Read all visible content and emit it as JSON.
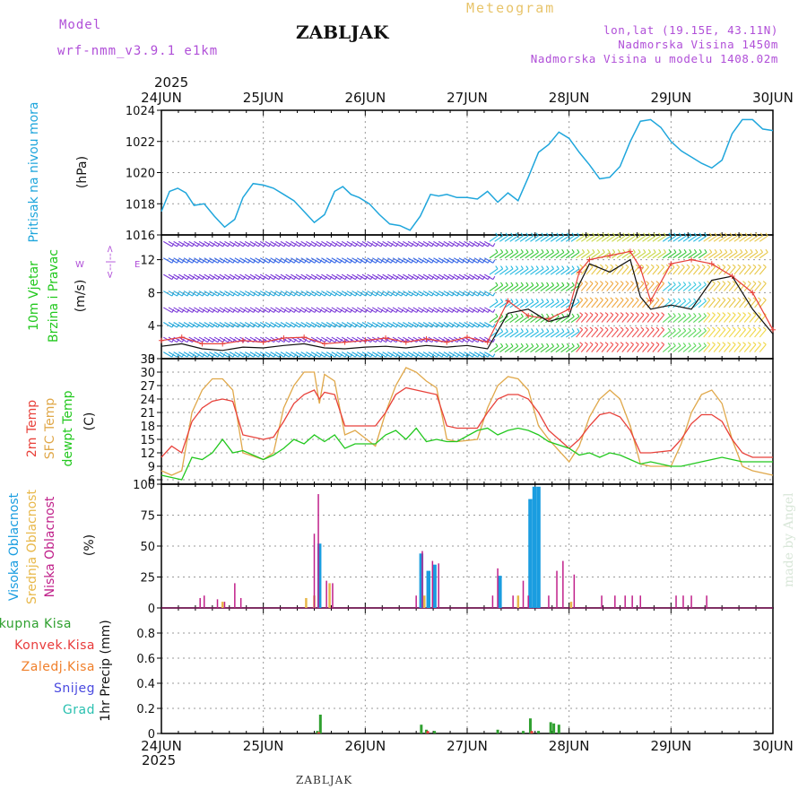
{
  "header": {
    "model_label": "Model",
    "model_name": "wrf-nmm_v3.9.1 e1km",
    "station_title": "ZABLJAK",
    "meteogram_label": "Meteogram",
    "lonlat": "lon,lat (19.15E, 43.11N)",
    "altitude": "Nadmorska Visina 1450m",
    "model_altitude": "Nadmorska Visina u modelu 1408.02m",
    "top_year": "2025",
    "bottom_year": "2025",
    "footer_station": "ZABLJAK",
    "made_by": "made by Angel"
  },
  "dates": [
    "24JUN",
    "25JUN",
    "26JUN",
    "27JUN",
    "28JUN",
    "29JUN",
    "30JUN"
  ],
  "colors": {
    "pressure": "#1fa6dc",
    "temp2m": "#e8413a",
    "sfc": "#e0a84a",
    "dew": "#22c81e",
    "high_cloud": "#1a9de0",
    "mid_cloud": "#e8b84a",
    "low_cloud": "#c0208a",
    "total_precip": "#2fa02f",
    "conv_precip": "#e83a3a",
    "frozen": "#f07f2a",
    "snow": "#4a4ae0",
    "graupel": "#2ac0b0",
    "wind_label": "#22c81e",
    "wind_axis": "#b04fd8"
  },
  "chart_data": [
    {
      "type": "line",
      "panel": "pressure",
      "ylabel": "Pritisak na nivou mora",
      "units": "(hPa)",
      "ylim": [
        1016,
        1024
      ],
      "yticks": [
        1016,
        1018,
        1020,
        1022,
        1024
      ],
      "grid": true,
      "series": [
        {
          "x": [
            0,
            0.08,
            0.16,
            0.24,
            0.32,
            0.42,
            0.52,
            0.62,
            0.72,
            0.8,
            0.9,
            1.0,
            1.1,
            1.2,
            1.3,
            1.4,
            1.5,
            1.6,
            1.7,
            1.78,
            1.86,
            1.94,
            2.04,
            2.14,
            2.24,
            2.34,
            2.44,
            2.54,
            2.64,
            2.72,
            2.8,
            2.9,
            3.0,
            3.1,
            3.2,
            3.3,
            3.4,
            3.5,
            3.6,
            3.7,
            3.8,
            3.9,
            4.0,
            4.1,
            4.2,
            4.3,
            4.4,
            4.5,
            4.6,
            4.7,
            4.8,
            4.9,
            5.0,
            5.1,
            5.2,
            5.3,
            5.4,
            5.5,
            5.6,
            5.7,
            5.8,
            5.9,
            6.0
          ],
          "y": [
            1017.5,
            1018.8,
            1019.0,
            1018.7,
            1017.9,
            1018.0,
            1017.2,
            1016.5,
            1017.0,
            1018.4,
            1019.3,
            1019.2,
            1019.0,
            1018.6,
            1018.2,
            1017.5,
            1016.8,
            1017.3,
            1018.8,
            1019.1,
            1018.6,
            1018.4,
            1018.0,
            1017.3,
            1016.7,
            1016.6,
            1016.3,
            1017.2,
            1018.6,
            1018.5,
            1018.6,
            1018.4,
            1018.4,
            1018.3,
            1018.8,
            1018.1,
            1018.7,
            1018.2,
            1019.7,
            1021.3,
            1021.8,
            1022.6,
            1022.2,
            1021.3,
            1020.5,
            1019.6,
            1019.7,
            1020.4,
            1022.0,
            1023.3,
            1023.4,
            1022.9,
            1022.0,
            1021.4,
            1021.0,
            1020.6,
            1020.3,
            1020.8,
            1022.5,
            1023.4,
            1023.4,
            1022.8,
            1022.7
          ]
        }
      ]
    },
    {
      "type": "line",
      "panel": "wind",
      "ylabel": "10m Vjetar",
      "ylabel2": "Brzina i Pravac",
      "units": "(m/s)",
      "compass": "N\n^\n|\n<--|-->\nE\nW",
      "ylim": [
        0,
        15
      ],
      "yticks": [
        0,
        4,
        8,
        12
      ],
      "grid": true,
      "series": [
        {
          "name": "speed",
          "x": [
            0,
            0.2,
            0.4,
            0.6,
            0.8,
            1.0,
            1.2,
            1.4,
            1.6,
            1.8,
            2.0,
            2.2,
            2.4,
            2.6,
            2.8,
            3.0,
            3.2,
            3.4,
            3.6,
            3.8,
            4.0,
            4.1,
            4.2,
            4.4,
            4.6,
            4.7,
            4.8,
            5.0,
            5.2,
            5.4,
            5.6,
            5.8,
            6.0
          ],
          "y": [
            1.5,
            1.8,
            1.2,
            1.0,
            1.4,
            1.3,
            1.6,
            1.8,
            1.3,
            1.2,
            1.4,
            1.5,
            1.3,
            1.6,
            1.4,
            1.6,
            1.2,
            5.5,
            6.0,
            4.5,
            5.2,
            9.0,
            11.5,
            10.5,
            12.0,
            7.5,
            6.0,
            6.5,
            6.0,
            9.5,
            10.0,
            6.0,
            3.0
          ]
        },
        {
          "name": "gust",
          "x": [
            0,
            0.2,
            0.4,
            0.6,
            0.8,
            1.0,
            1.2,
            1.4,
            1.6,
            1.8,
            2.0,
            2.2,
            2.4,
            2.6,
            2.8,
            3.0,
            3.2,
            3.4,
            3.6,
            3.8,
            4.0,
            4.1,
            4.2,
            4.4,
            4.6,
            4.7,
            4.8,
            5.0,
            5.2,
            5.4,
            5.6,
            5.8,
            6.0
          ],
          "y": [
            2.2,
            2.6,
            1.8,
            1.8,
            2.2,
            2.0,
            2.5,
            2.6,
            1.8,
            2.0,
            2.2,
            2.5,
            2.0,
            2.4,
            2.0,
            2.6,
            2.0,
            7.0,
            5.2,
            4.8,
            6.0,
            10.5,
            12.0,
            12.5,
            13.0,
            11.0,
            7.0,
            11.5,
            12.0,
            11.5,
            10.0,
            8.0,
            3.5
          ]
        }
      ]
    },
    {
      "type": "line",
      "panel": "temperature",
      "ylabel_lines": [
        "2m Temp",
        "SFC Temp",
        "dewpt Temp"
      ],
      "units": "(C)",
      "ylim": [
        5,
        33
      ],
      "yticks": [
        6,
        9,
        12,
        15,
        18,
        21,
        24,
        27,
        30,
        33
      ],
      "grid": true,
      "series": [
        {
          "name": "2m Temp",
          "x": [
            0,
            0.1,
            0.2,
            0.3,
            0.4,
            0.5,
            0.6,
            0.7,
            0.8,
            1.0,
            1.1,
            1.2,
            1.3,
            1.4,
            1.5,
            1.55,
            1.6,
            1.7,
            1.8,
            1.9,
            2.1,
            2.2,
            2.3,
            2.4,
            2.5,
            2.6,
            2.7,
            2.8,
            2.9,
            3.1,
            3.2,
            3.3,
            3.4,
            3.5,
            3.6,
            3.7,
            3.8,
            4.0,
            4.1,
            4.2,
            4.3,
            4.4,
            4.5,
            4.6,
            4.7,
            4.8,
            5.0,
            5.1,
            5.2,
            5.3,
            5.4,
            5.5,
            5.6,
            5.7,
            5.8,
            6.0
          ],
          "y": [
            11,
            13.5,
            12,
            19,
            22,
            23.5,
            24,
            23.5,
            16,
            15,
            15.5,
            19,
            23,
            25,
            26,
            24,
            25.5,
            25,
            18,
            18,
            18,
            21,
            25,
            26.5,
            26,
            25.5,
            25,
            18,
            17.5,
            17.5,
            21,
            24,
            25,
            25,
            24,
            21,
            17,
            13,
            15,
            18,
            20.5,
            21,
            20,
            17,
            12,
            12,
            12.5,
            15,
            18.5,
            20.5,
            20.5,
            19,
            15,
            12,
            11,
            11
          ]
        },
        {
          "name": "SFC Temp",
          "x": [
            0,
            0.1,
            0.2,
            0.3,
            0.4,
            0.5,
            0.6,
            0.7,
            0.8,
            1.0,
            1.1,
            1.2,
            1.3,
            1.4,
            1.5,
            1.55,
            1.6,
            1.7,
            1.8,
            1.9,
            2.1,
            2.2,
            2.3,
            2.4,
            2.5,
            2.6,
            2.7,
            2.8,
            2.9,
            3.1,
            3.2,
            3.3,
            3.4,
            3.5,
            3.6,
            3.7,
            3.8,
            4.0,
            4.1,
            4.2,
            4.3,
            4.4,
            4.5,
            4.6,
            4.7,
            4.8,
            5.0,
            5.1,
            5.2,
            5.3,
            5.4,
            5.5,
            5.6,
            5.7,
            5.8,
            6.0
          ],
          "y": [
            8,
            7,
            8,
            21,
            26,
            28.5,
            28.5,
            26,
            12,
            10.5,
            12,
            22,
            27,
            30,
            30,
            23,
            29.5,
            28,
            16,
            17,
            13.5,
            21,
            27,
            31,
            30,
            28,
            26.5,
            15,
            14.5,
            15,
            22,
            27,
            29,
            28.5,
            26,
            18,
            15,
            10,
            13.5,
            20,
            24,
            26,
            24,
            18,
            9.5,
            9,
            9,
            14,
            21,
            25,
            26,
            23,
            15,
            9,
            8,
            7
          ]
        },
        {
          "name": "dewpt Temp",
          "x": [
            0,
            0.1,
            0.2,
            0.3,
            0.4,
            0.5,
            0.6,
            0.7,
            0.8,
            1.0,
            1.1,
            1.2,
            1.3,
            1.4,
            1.5,
            1.6,
            1.7,
            1.8,
            1.9,
            2.1,
            2.2,
            2.3,
            2.4,
            2.5,
            2.6,
            2.7,
            2.8,
            2.9,
            3.1,
            3.2,
            3.3,
            3.4,
            3.5,
            3.6,
            3.7,
            3.8,
            4.0,
            4.1,
            4.2,
            4.3,
            4.4,
            4.5,
            4.6,
            4.7,
            4.8,
            5.0,
            5.1,
            5.2,
            5.3,
            5.4,
            5.5,
            5.6,
            5.7,
            5.8,
            6.0
          ],
          "y": [
            7,
            6.5,
            6,
            11,
            10.5,
            12,
            15,
            12,
            12.5,
            10.5,
            11.5,
            13,
            15,
            14,
            16,
            14.5,
            16,
            13,
            14,
            14,
            16,
            17,
            15,
            17.5,
            14.5,
            15,
            14.5,
            14.5,
            17,
            17.5,
            16,
            17,
            17.5,
            17,
            16,
            14.5,
            13,
            11.5,
            12,
            11,
            12,
            11.5,
            10.5,
            9.5,
            10,
            9,
            9,
            9.5,
            10,
            10.5,
            11,
            10.5,
            10,
            10,
            10
          ]
        }
      ]
    },
    {
      "type": "bar",
      "panel": "clouds",
      "ylabel_lines": [
        "Visoka Oblacnost",
        "Srednja Oblacnost",
        "Niska Oblacnost"
      ],
      "units": "(%)",
      "ylim": [
        0,
        100
      ],
      "yticks": [
        0,
        25,
        50,
        75,
        100
      ],
      "grid": true,
      "series": [
        {
          "name": "Visoka Oblacnost",
          "x": [
            1.55,
            2.55,
            2.62,
            2.68,
            3.32,
            3.62,
            3.66,
            3.7
          ],
          "values": [
            52,
            44,
            30,
            35,
            26,
            88,
            98,
            98
          ]
        },
        {
          "name": "Srednja Oblacnost",
          "x": [
            0.6,
            1.42,
            1.5,
            1.65,
            2.58,
            3.5,
            4.02
          ],
          "values": [
            5,
            8,
            10,
            20,
            10,
            10,
            5
          ]
        },
        {
          "name": "Niska Oblacnost",
          "x": [
            0.38,
            0.42,
            0.55,
            0.62,
            0.72,
            0.78,
            1.5,
            1.54,
            1.62,
            1.68,
            2.5,
            2.56,
            2.66,
            2.72,
            3.25,
            3.3,
            3.45,
            3.55,
            3.6,
            3.8,
            3.88,
            3.94,
            4.05,
            4.32,
            4.45,
            4.55,
            4.62,
            4.7,
            5.05,
            5.12,
            5.2,
            5.35
          ],
          "values": [
            8,
            10,
            7,
            5,
            20,
            8,
            60,
            92,
            22,
            20,
            10,
            46,
            38,
            36,
            10,
            32,
            10,
            22,
            10,
            10,
            30,
            38,
            27,
            10,
            10,
            10,
            10,
            10,
            10,
            10,
            10,
            10
          ]
        }
      ]
    },
    {
      "type": "bar",
      "panel": "precipitation",
      "ylabel": "1hr Precip (mm)",
      "legend": [
        "Ukupna Kisa",
        "Konvek.Kisa",
        "Zaledj.Kisa",
        "Snijeg",
        "Grad"
      ],
      "ylim": [
        0,
        1.0
      ],
      "yticks": [
        0,
        0.2,
        0.4,
        0.6,
        0.8
      ],
      "grid": true,
      "series": [
        {
          "name": "Ukupna Kisa",
          "x": [
            1.53,
            1.56,
            2.55,
            2.6,
            2.68,
            3.3,
            3.55,
            3.62,
            3.7,
            3.82,
            3.85,
            3.9
          ],
          "values": [
            0.02,
            0.15,
            0.07,
            0.03,
            0.02,
            0.03,
            0.02,
            0.12,
            0.02,
            0.09,
            0.08,
            0.07
          ]
        },
        {
          "name": "Konvek.Kisa",
          "x": [
            1.53,
            2.6,
            3.62
          ],
          "values": [
            0.01,
            0.02,
            0.02
          ]
        }
      ]
    }
  ]
}
